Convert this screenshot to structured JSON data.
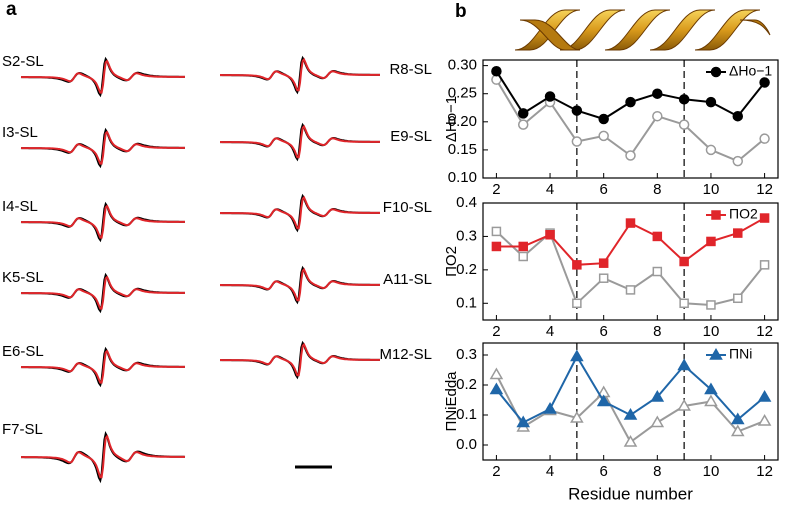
{
  "panels": {
    "a": {
      "label": "a",
      "left_spectra": [
        "S2-SL",
        "I3-SL",
        "I4-SL",
        "K5-SL",
        "E6-SL",
        "F7-SL"
      ],
      "right_spectra": [
        "R8-SL",
        "E9-SL",
        "F10-SL",
        "A11-SL",
        "M12-SL"
      ]
    },
    "b": {
      "label": "b"
    }
  },
  "chart_data": [
    {
      "type": "line",
      "ylabel": "ΔHo−1",
      "x": [
        2,
        3,
        4,
        5,
        6,
        7,
        8,
        9,
        10,
        11,
        12
      ],
      "xlim": [
        1.5,
        12.5
      ],
      "xticks": [
        2,
        4,
        6,
        8,
        10,
        12
      ],
      "ylim": [
        0.1,
        0.31
      ],
      "yticks": [
        {
          "value": 0.1,
          "label": "0.10"
        },
        0.15,
        {
          "value": 0.2,
          "label": "0.20"
        },
        0.25,
        {
          "value": 0.3,
          "label": "0.30"
        }
      ],
      "vlines": [
        5,
        9
      ],
      "legend": "upper right",
      "series": [
        {
          "color": "#9a9a9a",
          "marker": "open-circle",
          "values": [
            0.275,
            0.195,
            0.235,
            0.165,
            0.175,
            0.14,
            0.21,
            0.195,
            0.15,
            0.13,
            0.17
          ]
        },
        {
          "name": "ΔHo−1",
          "color": "#000000",
          "marker": "circle",
          "values": [
            0.29,
            0.215,
            0.245,
            0.22,
            0.205,
            0.235,
            0.25,
            0.24,
            0.235,
            0.21,
            0.27
          ]
        }
      ]
    },
    {
      "type": "line",
      "ylabel": "ΠO2",
      "x": [
        2,
        3,
        4,
        5,
        6,
        7,
        8,
        9,
        10,
        11,
        12
      ],
      "xlim": [
        1.5,
        12.5
      ],
      "xticks": [
        2,
        4,
        6,
        8,
        10,
        12
      ],
      "ylim": [
        0.05,
        0.4
      ],
      "yticks": [
        0.1,
        0.2,
        0.3,
        0.4
      ],
      "vlines": [
        5,
        9
      ],
      "legend": "upper right",
      "series": [
        {
          "color": "#9a9a9a",
          "marker": "open-square",
          "values": [
            0.315,
            0.24,
            0.31,
            0.1,
            0.175,
            0.14,
            0.195,
            0.1,
            0.095,
            0.115,
            0.215
          ]
        },
        {
          "name": "ΠO2",
          "color": "#e0252a",
          "marker": "square",
          "values": [
            0.27,
            0.27,
            0.305,
            0.215,
            0.22,
            0.34,
            0.3,
            0.225,
            0.285,
            0.31,
            0.355
          ]
        }
      ]
    },
    {
      "type": "line",
      "ylabel": "ΠNiEdda",
      "xlabel": "Residue number",
      "x": [
        2,
        3,
        4,
        5,
        6,
        7,
        8,
        9,
        10,
        11,
        12
      ],
      "xlim": [
        1.5,
        12.5
      ],
      "xticks": [
        2,
        4,
        6,
        8,
        10,
        12
      ],
      "ylim": [
        -0.05,
        0.34
      ],
      "yticks": [
        {
          "value": 0,
          "label": "0.0"
        },
        0.1,
        0.2,
        0.3
      ],
      "vlines": [
        5,
        9
      ],
      "legend": "upper right",
      "series": [
        {
          "color": "#9a9a9a",
          "marker": "open-triangle",
          "values": [
            0.235,
            0.06,
            0.115,
            0.09,
            0.175,
            0.01,
            0.075,
            0.13,
            0.145,
            0.045,
            0.08
          ]
        },
        {
          "name": "ΠNi",
          "color": "#1f66a8",
          "marker": "triangle",
          "values": [
            0.185,
            0.075,
            0.12,
            0.295,
            0.145,
            0.1,
            0.16,
            0.265,
            0.185,
            0.085,
            0.16
          ]
        }
      ]
    }
  ]
}
